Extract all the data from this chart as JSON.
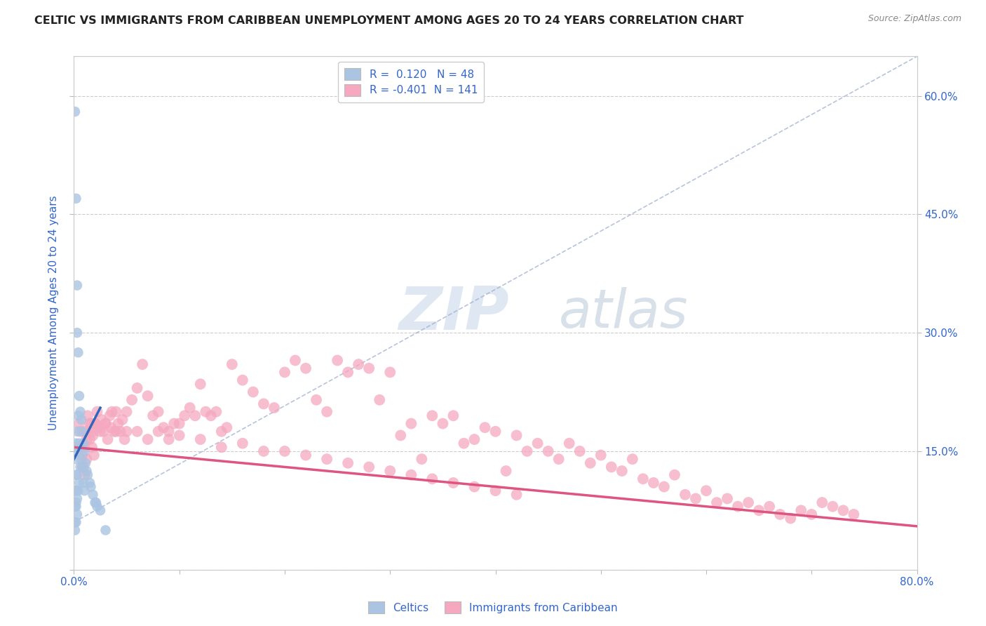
{
  "title": "CELTIC VS IMMIGRANTS FROM CARIBBEAN UNEMPLOYMENT AMONG AGES 20 TO 24 YEARS CORRELATION CHART",
  "source": "Source: ZipAtlas.com",
  "ylabel": "Unemployment Among Ages 20 to 24 years",
  "xlim": [
    0.0,
    0.8
  ],
  "ylim": [
    0.0,
    0.65
  ],
  "grid_color": "#cccccc",
  "background_color": "#ffffff",
  "celtics_color": "#aac4e2",
  "caribbean_color": "#f5a8c0",
  "celtics_line_color": "#3366bb",
  "caribbean_line_color": "#dd5580",
  "celtics_R": 0.12,
  "celtics_N": 48,
  "caribbean_R": -0.401,
  "caribbean_N": 141,
  "legend_title_color": "#3366cc",
  "axis_label_color": "#3366cc",
  "watermark_zip": "ZIP",
  "watermark_atlas": "atlas",
  "celtics_scatter_x": [
    0.001,
    0.001,
    0.001,
    0.001,
    0.001,
    0.002,
    0.002,
    0.002,
    0.002,
    0.002,
    0.002,
    0.002,
    0.003,
    0.003,
    0.003,
    0.003,
    0.003,
    0.003,
    0.004,
    0.004,
    0.004,
    0.004,
    0.005,
    0.005,
    0.005,
    0.006,
    0.006,
    0.007,
    0.007,
    0.008,
    0.008,
    0.009,
    0.009,
    0.01,
    0.01,
    0.011,
    0.012,
    0.013,
    0.015,
    0.016,
    0.018,
    0.02,
    0.021,
    0.022,
    0.025,
    0.03,
    0.003,
    0.002
  ],
  "celtics_scatter_y": [
    0.58,
    0.1,
    0.08,
    0.06,
    0.05,
    0.47,
    0.16,
    0.14,
    0.12,
    0.1,
    0.08,
    0.06,
    0.3,
    0.175,
    0.155,
    0.12,
    0.09,
    0.07,
    0.275,
    0.195,
    0.15,
    0.1,
    0.22,
    0.16,
    0.11,
    0.2,
    0.13,
    0.19,
    0.14,
    0.175,
    0.13,
    0.16,
    0.11,
    0.15,
    0.1,
    0.135,
    0.125,
    0.12,
    0.11,
    0.105,
    0.095,
    0.085,
    0.085,
    0.08,
    0.075,
    0.05,
    0.36,
    0.085
  ],
  "caribbean_scatter_x": [
    0.005,
    0.006,
    0.007,
    0.008,
    0.009,
    0.01,
    0.011,
    0.012,
    0.013,
    0.014,
    0.015,
    0.016,
    0.017,
    0.018,
    0.019,
    0.02,
    0.022,
    0.024,
    0.026,
    0.028,
    0.03,
    0.032,
    0.034,
    0.036,
    0.038,
    0.04,
    0.042,
    0.044,
    0.046,
    0.048,
    0.05,
    0.055,
    0.06,
    0.065,
    0.07,
    0.075,
    0.08,
    0.085,
    0.09,
    0.095,
    0.1,
    0.105,
    0.11,
    0.115,
    0.12,
    0.125,
    0.13,
    0.135,
    0.14,
    0.145,
    0.15,
    0.16,
    0.17,
    0.18,
    0.19,
    0.2,
    0.21,
    0.22,
    0.23,
    0.24,
    0.25,
    0.26,
    0.27,
    0.28,
    0.29,
    0.3,
    0.31,
    0.32,
    0.33,
    0.34,
    0.35,
    0.36,
    0.37,
    0.38,
    0.39,
    0.4,
    0.41,
    0.42,
    0.43,
    0.44,
    0.45,
    0.46,
    0.47,
    0.48,
    0.49,
    0.5,
    0.51,
    0.52,
    0.53,
    0.54,
    0.55,
    0.56,
    0.57,
    0.58,
    0.59,
    0.6,
    0.61,
    0.62,
    0.63,
    0.64,
    0.65,
    0.66,
    0.67,
    0.68,
    0.69,
    0.7,
    0.71,
    0.72,
    0.73,
    0.74,
    0.008,
    0.01,
    0.012,
    0.015,
    0.018,
    0.02,
    0.025,
    0.03,
    0.035,
    0.04,
    0.05,
    0.06,
    0.07,
    0.08,
    0.09,
    0.1,
    0.12,
    0.14,
    0.16,
    0.18,
    0.2,
    0.22,
    0.24,
    0.26,
    0.28,
    0.3,
    0.32,
    0.34,
    0.36,
    0.38,
    0.4,
    0.42
  ],
  "caribbean_scatter_y": [
    0.185,
    0.175,
    0.155,
    0.145,
    0.13,
    0.12,
    0.175,
    0.165,
    0.195,
    0.175,
    0.165,
    0.185,
    0.155,
    0.175,
    0.145,
    0.185,
    0.2,
    0.18,
    0.19,
    0.175,
    0.185,
    0.165,
    0.195,
    0.2,
    0.175,
    0.2,
    0.185,
    0.175,
    0.19,
    0.165,
    0.2,
    0.215,
    0.23,
    0.26,
    0.22,
    0.195,
    0.2,
    0.18,
    0.175,
    0.185,
    0.185,
    0.195,
    0.205,
    0.195,
    0.235,
    0.2,
    0.195,
    0.2,
    0.175,
    0.18,
    0.26,
    0.24,
    0.225,
    0.21,
    0.205,
    0.25,
    0.265,
    0.255,
    0.215,
    0.2,
    0.265,
    0.25,
    0.26,
    0.255,
    0.215,
    0.25,
    0.17,
    0.185,
    0.14,
    0.195,
    0.185,
    0.195,
    0.16,
    0.165,
    0.18,
    0.175,
    0.125,
    0.17,
    0.15,
    0.16,
    0.15,
    0.14,
    0.16,
    0.15,
    0.135,
    0.145,
    0.13,
    0.125,
    0.14,
    0.115,
    0.11,
    0.105,
    0.12,
    0.095,
    0.09,
    0.1,
    0.085,
    0.09,
    0.08,
    0.085,
    0.075,
    0.08,
    0.07,
    0.065,
    0.075,
    0.07,
    0.085,
    0.08,
    0.075,
    0.07,
    0.13,
    0.155,
    0.14,
    0.185,
    0.17,
    0.185,
    0.175,
    0.185,
    0.18,
    0.175,
    0.175,
    0.175,
    0.165,
    0.175,
    0.165,
    0.17,
    0.165,
    0.155,
    0.16,
    0.15,
    0.15,
    0.145,
    0.14,
    0.135,
    0.13,
    0.125,
    0.12,
    0.115,
    0.11,
    0.105,
    0.1,
    0.095
  ]
}
